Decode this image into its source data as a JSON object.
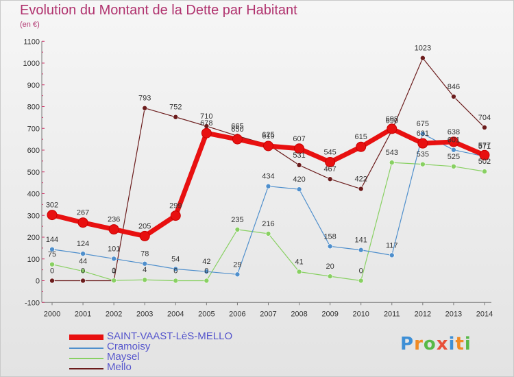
{
  "title": "Evolution du Montant de la Dette par Habitant",
  "subtitle": "(en €)",
  "brand": {
    "text": "Proxiti",
    "colors": [
      "#3d8fd6",
      "#f08a24",
      "#57b947",
      "#e8503a",
      "#3d8fd6",
      "#f08a24",
      "#57b947"
    ]
  },
  "chart_data": {
    "type": "line",
    "title": "Evolution du Montant de la Dette par Habitant",
    "subtitle": "(en €)",
    "xlabel": "",
    "ylabel": "",
    "x": [
      "2000",
      "2001",
      "2002",
      "2003",
      "2004",
      "2005",
      "2006",
      "2007",
      "2008",
      "2009",
      "2010",
      "2011",
      "2012",
      "2013",
      "2014"
    ],
    "ylim": [
      -100,
      1100
    ],
    "yticks": [
      -100,
      0,
      100,
      200,
      300,
      400,
      500,
      600,
      700,
      800,
      900,
      1000,
      1100
    ],
    "grid": false,
    "legend_position": "bottom-left",
    "series": [
      {
        "name": "SAINT-VAAST-LèS-MELLO",
        "color": "#e81010",
        "width": 7,
        "values": [
          302,
          267,
          236,
          205,
          299,
          678,
          650,
          619,
          607,
          545,
          615,
          698,
          631,
          638,
          577
        ],
        "labels": [
          "302",
          "267",
          "236",
          "205",
          "299",
          "678",
          "650",
          "619",
          "607",
          "545",
          "615",
          "698",
          "631",
          "638",
          "577"
        ]
      },
      {
        "name": "Cramoisy",
        "color": "#4f8fcc",
        "width": 1.2,
        "values": [
          144,
          124,
          101,
          78,
          54,
          42,
          29,
          434,
          420,
          158,
          141,
          117,
          675,
          601,
          571
        ],
        "labels": [
          "144",
          "124",
          "101",
          "78",
          "54",
          "42",
          "29",
          "434",
          "420",
          "158",
          "141",
          "117",
          "675",
          "601",
          "571"
        ]
      },
      {
        "name": "Maysel",
        "color": "#88d062",
        "width": 1.2,
        "values": [
          75,
          44,
          1,
          4,
          0,
          0,
          235,
          216,
          41,
          20,
          0,
          543,
          535,
          525,
          502
        ],
        "labels": [
          "75",
          "44",
          "1",
          "4",
          "0",
          "0",
          "235",
          "216",
          "41",
          "20",
          "0",
          "543",
          "535",
          "525",
          "502"
        ]
      },
      {
        "name": "Mello",
        "color": "#6b1c1c",
        "width": 1.2,
        "values": [
          0,
          0,
          0,
          793,
          752,
          710,
          665,
          625,
          531,
          467,
          422,
          690,
          1023,
          846,
          704
        ],
        "labels": [
          "0",
          "0",
          "0",
          "793",
          "752",
          "710",
          "665",
          "625",
          "531",
          "467",
          "422",
          "690",
          "1023",
          "846",
          "704"
        ]
      }
    ]
  }
}
